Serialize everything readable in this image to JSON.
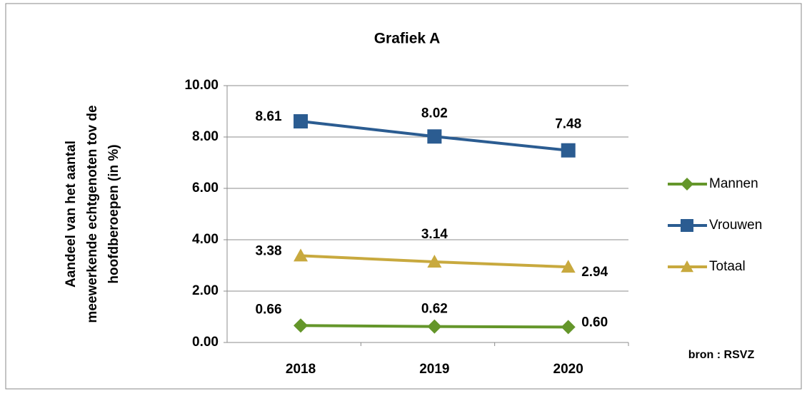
{
  "chart_data": {
    "type": "line",
    "title": "Grafiek A",
    "ylabel": [
      "Aandeel van het aantal",
      "meewerkende echtgenoten tov de",
      "hoofdberoepen (in %)"
    ],
    "categories": [
      "2018",
      "2019",
      "2020"
    ],
    "series": [
      {
        "name": "Mannen",
        "color": "#64962a",
        "marker": "diamond",
        "values": [
          0.66,
          0.62,
          0.6
        ],
        "value_labels": [
          "0.66",
          "0.62",
          "0.60"
        ]
      },
      {
        "name": "Vrouwen",
        "color": "#2b5c91",
        "marker": "square",
        "values": [
          8.61,
          8.02,
          7.48
        ],
        "value_labels": [
          "8.61",
          "8.02",
          "7.48"
        ]
      },
      {
        "name": "Totaal",
        "color": "#c8a93e",
        "marker": "triangle",
        "values": [
          3.38,
          3.14,
          2.94
        ],
        "value_labels": [
          "3.38",
          "3.14",
          "2.94"
        ]
      }
    ],
    "ylim": [
      0,
      10
    ],
    "yticks": [
      {
        "value": 0,
        "label": "0.00"
      },
      {
        "value": 2,
        "label": "2.00"
      },
      {
        "value": 4,
        "label": "4.00"
      },
      {
        "value": 6,
        "label": "6.00"
      },
      {
        "value": 8,
        "label": "8.00"
      },
      {
        "value": 10,
        "label": "10.00"
      }
    ],
    "grid": true,
    "legend": "right",
    "annotation": "bron : RSVZ"
  }
}
